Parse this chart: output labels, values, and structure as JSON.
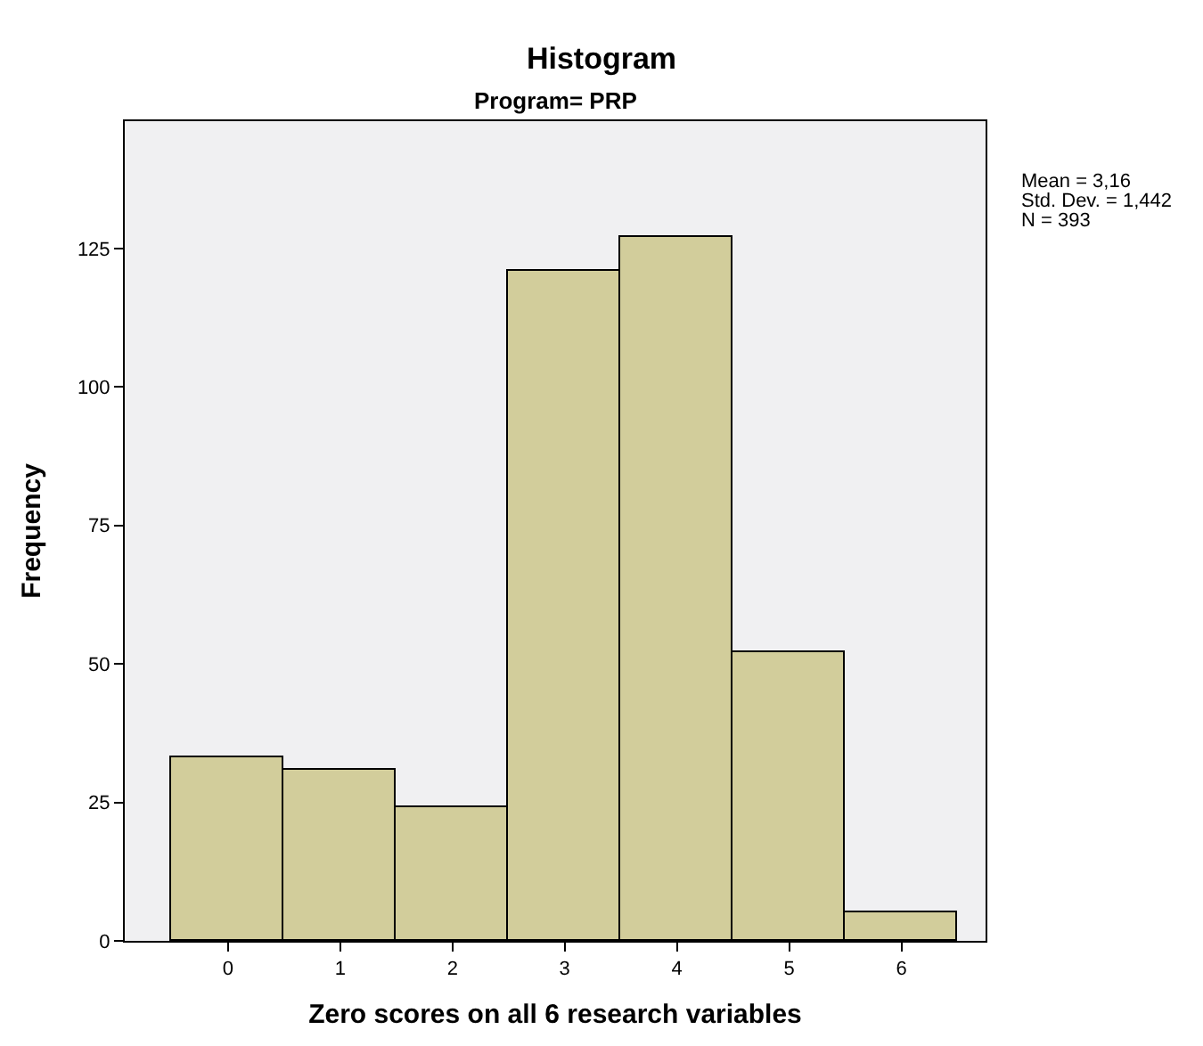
{
  "chart_data": {
    "type": "histogram",
    "title": "Histogram",
    "subtitle": "Program= PRP",
    "xlabel": "Zero scores on all 6 research variables",
    "ylabel": "Frequency",
    "bins": [
      -0.5,
      0.5,
      1.5,
      2.5,
      3.5,
      4.5,
      5.5,
      6.5
    ],
    "values": [
      33,
      31,
      24,
      121,
      127,
      52,
      5
    ],
    "color": "#d2cd9b",
    "xlim": [
      -0.92,
      6.75
    ],
    "xticks": [
      0,
      1,
      2,
      3,
      4,
      5,
      6
    ],
    "ylim": [
      0,
      148
    ],
    "yticks": [
      0,
      25,
      50,
      75,
      100,
      125
    ],
    "grid": false,
    "annotations": [
      "Mean = 3,16",
      "Std. Dev. = 1,442",
      "N = 393"
    ]
  }
}
